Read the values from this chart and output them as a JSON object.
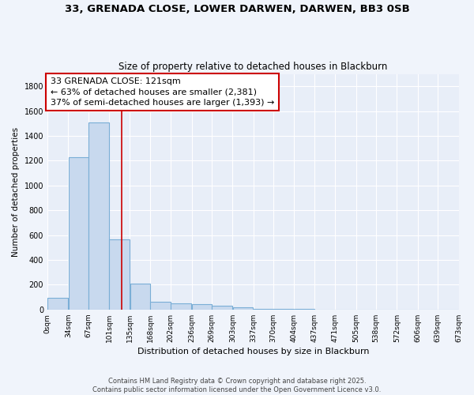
{
  "title_line1": "33, GRENADA CLOSE, LOWER DARWEN, DARWEN, BB3 0SB",
  "title_line2": "Size of property relative to detached houses in Blackburn",
  "xlabel": "Distribution of detached houses by size in Blackburn",
  "ylabel": "Number of detached properties",
  "bin_edges": [
    0,
    34,
    67,
    101,
    135,
    168,
    202,
    236,
    269,
    303,
    337,
    370,
    404,
    437,
    471,
    505,
    538,
    572,
    606,
    639,
    673
  ],
  "bar_heights": [
    92,
    1230,
    1510,
    565,
    210,
    65,
    50,
    45,
    28,
    15,
    8,
    5,
    3,
    1,
    1,
    1,
    0,
    0,
    0,
    0
  ],
  "bar_color": "#c8d9ee",
  "bar_edge_color": "#7aaed6",
  "property_size": 121,
  "red_line_color": "#cc0000",
  "annotation_text": "33 GRENADA CLOSE: 121sqm\n← 63% of detached houses are smaller (2,381)\n37% of semi-detached houses are larger (1,393) →",
  "annotation_box_color": "#ffffff",
  "annotation_border_color": "#cc0000",
  "ylim": [
    0,
    1900
  ],
  "yticks": [
    0,
    200,
    400,
    600,
    800,
    1000,
    1200,
    1400,
    1600,
    1800
  ],
  "bg_color": "#f0f4fb",
  "plot_bg_color": "#e8eef8",
  "grid_color": "#ffffff",
  "footer_text": "Contains HM Land Registry data © Crown copyright and database right 2025.\nContains public sector information licensed under the Open Government Licence v3.0.",
  "tick_labels": [
    "0sqm",
    "34sqm",
    "67sqm",
    "101sqm",
    "135sqm",
    "168sqm",
    "202sqm",
    "236sqm",
    "269sqm",
    "303sqm",
    "337sqm",
    "370sqm",
    "404sqm",
    "437sqm",
    "471sqm",
    "505sqm",
    "538sqm",
    "572sqm",
    "606sqm",
    "639sqm",
    "673sqm"
  ]
}
